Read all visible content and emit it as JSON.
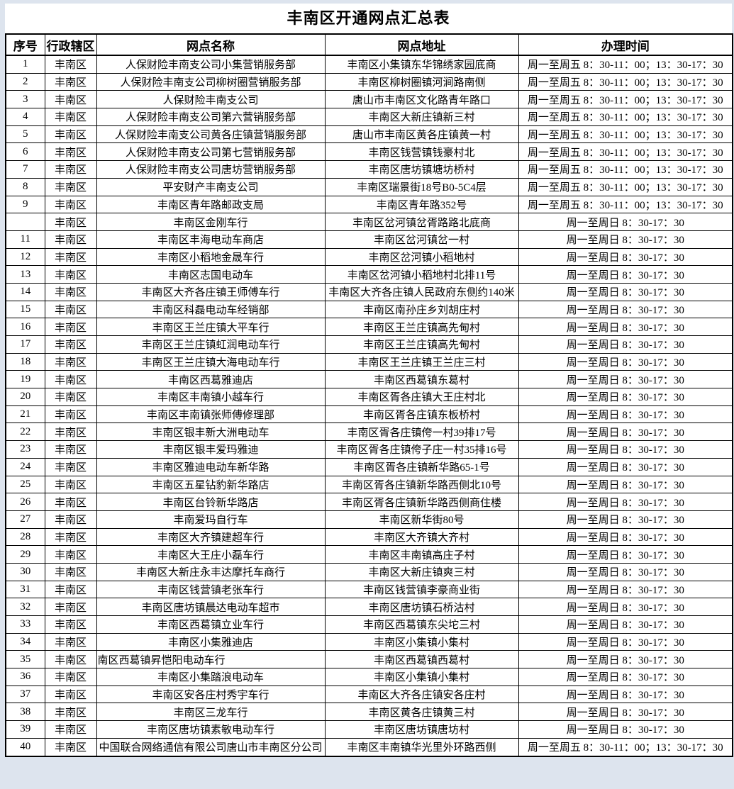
{
  "title": "丰南区开通网点汇总表",
  "colors": {
    "page_margin": "#dde4ee",
    "cell_background": "#ffffff",
    "grid_border": "#000000",
    "text": "#000000"
  },
  "table": {
    "headers": [
      "序号",
      "行政辖区",
      "网点名称",
      "网点地址",
      "办理时间"
    ],
    "rows": [
      [
        "1",
        "丰南区",
        "人保财险丰南支公司小集营销服务部",
        "丰南区小集镇东华锦绣家园底商",
        "周一至周五 8：30-11：00；13：30-17：30"
      ],
      [
        "2",
        "丰南区",
        "人保财险丰南支公司柳树圈营销服务部",
        "丰南区柳树圈镇河涧路南侧",
        "周一至周五 8：30-11：00；13：30-17：30"
      ],
      [
        "3",
        "丰南区",
        "人保财险丰南支公司",
        "唐山市丰南区文化路青年路口",
        "周一至周五 8：30-11：00；13：30-17：30"
      ],
      [
        "4",
        "丰南区",
        "人保财险丰南支公司第六营销服务部",
        "丰南区大新庄镇新三村",
        "周一至周五 8：30-11：00；13：30-17：30"
      ],
      [
        "5",
        "丰南区",
        "人保财险丰南支公司黄各庄镇营销服务部",
        "唐山市丰南区黄各庄镇黄一村",
        "周一至周五 8：30-11：00；13：30-17：30"
      ],
      [
        "6",
        "丰南区",
        "人保财险丰南支公司第七营销服务部",
        "丰南区钱营镇钱豪村北",
        "周一至周五 8：30-11：00；13：30-17：30"
      ],
      [
        "7",
        "丰南区",
        "人保财险丰南支公司唐坊营销服务部",
        "丰南区唐坊镇塘坊桥村",
        "周一至周五 8：30-11：00；13：30-17：30"
      ],
      [
        "8",
        "丰南区",
        "平安财产丰南支公司",
        "丰南区瑞景街18号B0-5C4层",
        "周一至周五 8：30-11：00；13：30-17：30"
      ],
      [
        "9",
        "丰南区",
        "丰南区青年路邮政支局",
        "丰南区青年路352号",
        "周一至周五 8：30-11：00；13：30-17：30"
      ],
      [
        "",
        "丰南区",
        "丰南区金刚车行",
        "丰南区岔河镇岔胥路路北底商",
        "周一至周日 8：30-17：30"
      ],
      [
        "11",
        "丰南区",
        "丰南区丰海电动车商店",
        "丰南区岔河镇岔一村",
        "周一至周日 8：30-17：30"
      ],
      [
        "12",
        "丰南区",
        "丰南区小稻地金晟车行",
        "丰南区岔河镇小稻地村",
        "周一至周日 8：30-17：30"
      ],
      [
        "13",
        "丰南区",
        "丰南区志国电动车",
        "丰南区岔河镇小稻地村北排11号",
        "周一至周日 8：30-17：30"
      ],
      [
        "14",
        "丰南区",
        "丰南区大齐各庄镇王师傅车行",
        "丰南区大齐各庄镇人民政府东侧约140米",
        "周一至周日 8：30-17：30"
      ],
      [
        "15",
        "丰南区",
        "丰南区科磊电动车经销部",
        "丰南区南孙庄乡刘胡庄村",
        "周一至周日 8：30-17：30"
      ],
      [
        "16",
        "丰南区",
        "丰南区王兰庄镇大平车行",
        "丰南区王兰庄镇高先甸村",
        "周一至周日 8：30-17：30"
      ],
      [
        "17",
        "丰南区",
        "丰南区王兰庄镇虹润电动车行",
        "丰南区王兰庄镇高先甸村",
        "周一至周日 8：30-17：30"
      ],
      [
        "18",
        "丰南区",
        "丰南区王兰庄镇大海电动车行",
        "丰南区王兰庄镇王兰庄三村",
        "周一至周日 8：30-17：30"
      ],
      [
        "19",
        "丰南区",
        "丰南区西葛雅迪店",
        "丰南区西葛镇东葛村",
        "周一至周日 8：30-17：30"
      ],
      [
        "20",
        "丰南区",
        "丰南区丰南镇小越车行",
        "丰南区胥各庄镇大王庄村北",
        "周一至周日 8：30-17：30"
      ],
      [
        "21",
        "丰南区",
        "丰南区丰南镇张师傅修理部",
        "丰南区胥各庄镇东板桥村",
        "周一至周日 8：30-17：30"
      ],
      [
        "22",
        "丰南区",
        "丰南区银丰新大洲电动车",
        "丰南区胥各庄镇侉一村39排17号",
        "周一至周日 8：30-17：30"
      ],
      [
        "23",
        "丰南区",
        "丰南区银丰爱玛雅迪",
        "丰南区胥各庄镇侉子庄一村35排16号",
        "周一至周日 8：30-17：30"
      ],
      [
        "24",
        "丰南区",
        "丰南区雅迪电动车新华路",
        "丰南区胥各庄镇新华路65-1号",
        "周一至周日 8：30-17：30"
      ],
      [
        "25",
        "丰南区",
        "丰南区五星钻豹新华路店",
        "丰南区胥各庄镇新华路西侧北10号",
        "周一至周日 8：30-17：30"
      ],
      [
        "26",
        "丰南区",
        "丰南区台铃新华路店",
        "丰南区胥各庄镇新华路西侧商住楼",
        "周一至周日 8：30-17：30"
      ],
      [
        "27",
        "丰南区",
        "丰南爱玛自行车",
        "丰南区新华街80号",
        "周一至周日 8：30-17：30"
      ],
      [
        "28",
        "丰南区",
        "丰南区大齐镇建超车行",
        "丰南区大齐镇大齐村",
        "周一至周日 8：30-17：30"
      ],
      [
        "29",
        "丰南区",
        "丰南区大王庄小磊车行",
        "丰南区丰南镇高庄子村",
        "周一至周日 8：30-17：30"
      ],
      [
        "30",
        "丰南区",
        "丰南区大新庄永丰达摩托车商行",
        "丰南区大新庄镇爽三村",
        "周一至周日 8：30-17：30"
      ],
      [
        "31",
        "丰南区",
        "丰南区钱营镇老张车行",
        "丰南区钱营镇李豪商业街",
        "周一至周日 8：30-17：30"
      ],
      [
        "32",
        "丰南区",
        "丰南区唐坊镇晨达电动车超市",
        "丰南区唐坊镇石桥沽村",
        "周一至周日 8：30-17：30"
      ],
      [
        "33",
        "丰南区",
        "丰南区西葛镇立业车行",
        "丰南区西葛镇东尖坨三村",
        "周一至周日 8：30-17：30"
      ],
      [
        "34",
        "丰南区",
        "丰南区小集雅迪店",
        "丰南区小集镇小集村",
        "周一至周日 8：30-17：30"
      ],
      [
        "35",
        "丰南区",
        "南区西葛镇昇恺阳电动车行",
        "丰南区西葛镇西葛村",
        "周一至周日 8：30-17：30"
      ],
      [
        "36",
        "丰南区",
        "丰南区小集踏浪电动车",
        "丰南区小集镇小集村",
        "周一至周日 8：30-17：30"
      ],
      [
        "37",
        "丰南区",
        "丰南区安各庄村秀宇车行",
        "丰南区大齐各庄镇安各庄村",
        "周一至周日 8：30-17：30"
      ],
      [
        "38",
        "丰南区",
        "丰南区三龙车行",
        "丰南区黄各庄镇黄三村",
        "周一至周日 8：30-17：30"
      ],
      [
        "39",
        "丰南区",
        "丰南区唐坊镇素敏电动车行",
        "丰南区唐坊镇唐坊村",
        "周一至周日 8：30-17：30"
      ],
      [
        "40",
        "丰南区",
        "中国联合网络通信有限公司唐山市丰南区分公司",
        "丰南区丰南镇华光里外环路西侧",
        "周一至周五 8：30-11：00；13：30-17：30"
      ]
    ]
  }
}
